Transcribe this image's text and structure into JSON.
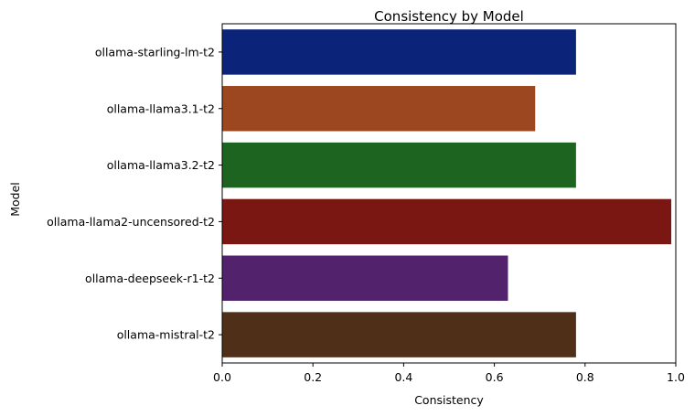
{
  "chart_data": {
    "type": "bar",
    "orientation": "horizontal",
    "title": "Consistency by Model",
    "xlabel": "Consistency",
    "ylabel": "Model",
    "categories": [
      "ollama-starling-lm-t2",
      "ollama-llama3.1-t2",
      "ollama-llama3.2-t2",
      "ollama-llama2-uncensored-t2",
      "ollama-deepseek-r1-t2",
      "ollama-mistral-t2"
    ],
    "values": [
      0.78,
      0.69,
      0.78,
      0.99,
      0.63,
      0.78
    ],
    "colors": [
      "#0b2378",
      "#9c4720",
      "#1e6421",
      "#7a1713",
      "#52236c",
      "#4f2f18"
    ],
    "xlim": [
      0,
      1.0
    ],
    "xticks": [
      "0.0",
      "0.2",
      "0.4",
      "0.6",
      "0.8",
      "1.0"
    ],
    "grid": false,
    "legend": "none"
  }
}
